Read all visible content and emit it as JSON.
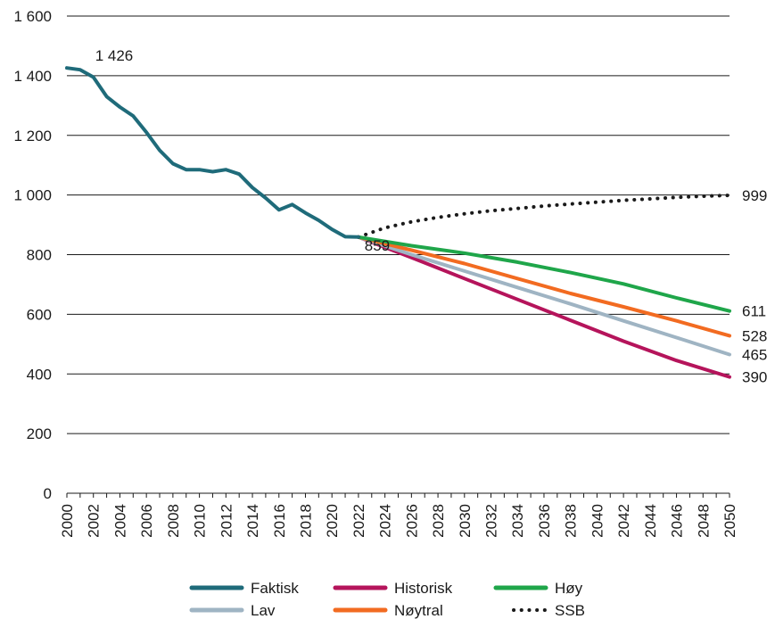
{
  "chart_data": {
    "type": "line",
    "title": "",
    "xlabel": "",
    "ylabel": "",
    "xlim": [
      2000,
      2050
    ],
    "ylim": [
      0,
      1600
    ],
    "yticks": [
      0,
      200,
      400,
      600,
      800,
      1000,
      1200,
      1400,
      1600
    ],
    "ytick_labels": [
      "0",
      "200",
      "400",
      "600",
      "800",
      "1 000",
      "1 200",
      "1 400",
      "1 600"
    ],
    "xticks": [
      2000,
      2002,
      2004,
      2006,
      2008,
      2010,
      2012,
      2014,
      2016,
      2018,
      2020,
      2022,
      2024,
      2026,
      2028,
      2030,
      2032,
      2034,
      2036,
      2038,
      2040,
      2042,
      2044,
      2046,
      2048,
      2050
    ],
    "grid": "horizontal",
    "legend_position": "bottom",
    "series": [
      {
        "name": "Faktisk",
        "color": "#1f6b7a",
        "style": "solid",
        "x": [
          2000,
          2001,
          2002,
          2003,
          2004,
          2005,
          2006,
          2007,
          2008,
          2009,
          2010,
          2011,
          2012,
          2013,
          2014,
          2015,
          2016,
          2017,
          2018,
          2019,
          2020,
          2021,
          2022
        ],
        "y": [
          1426,
          1420,
          1395,
          1330,
          1295,
          1265,
          1210,
          1150,
          1105,
          1085,
          1085,
          1078,
          1085,
          1070,
          1025,
          990,
          950,
          968,
          940,
          915,
          885,
          860,
          859
        ]
      },
      {
        "name": "Historisk",
        "color": "#b5145b",
        "style": "solid",
        "x": [
          2022,
          2026,
          2030,
          2034,
          2038,
          2042,
          2046,
          2050
        ],
        "y": [
          859,
          790,
          720,
          650,
          580,
          510,
          445,
          390
        ]
      },
      {
        "name": "Høy",
        "color": "#1fa64a",
        "style": "solid",
        "x": [
          2022,
          2026,
          2030,
          2034,
          2038,
          2042,
          2046,
          2050
        ],
        "y": [
          859,
          830,
          805,
          775,
          740,
          702,
          655,
          611
        ]
      },
      {
        "name": "Lav",
        "color": "#9fb4c3",
        "style": "solid",
        "x": [
          2022,
          2026,
          2030,
          2034,
          2038,
          2042,
          2046,
          2050
        ],
        "y": [
          859,
          800,
          745,
          690,
          635,
          578,
          522,
          465
        ]
      },
      {
        "name": "Nøytral",
        "color": "#f26b21",
        "style": "solid",
        "x": [
          2022,
          2026,
          2030,
          2034,
          2038,
          2042,
          2046,
          2050
        ],
        "y": [
          859,
          815,
          770,
          720,
          670,
          625,
          578,
          528
        ]
      },
      {
        "name": "SSB",
        "color": "#1a1a1a",
        "style": "dotted",
        "x": [
          2022,
          2024,
          2026,
          2028,
          2030,
          2032,
          2034,
          2036,
          2038,
          2040,
          2042,
          2044,
          2046,
          2048,
          2050
        ],
        "y": [
          859,
          890,
          910,
          925,
          937,
          947,
          955,
          963,
          970,
          976,
          982,
          987,
          992,
          996,
          999
        ]
      }
    ],
    "annotations": [
      {
        "text": "1 426",
        "x": 2002,
        "y": 1426,
        "placement": "start-label"
      },
      {
        "text": "859",
        "x": 2023,
        "y": 859,
        "placement": "junction-label"
      },
      {
        "text": "999",
        "x": 2050,
        "y": 999,
        "placement": "end-label"
      },
      {
        "text": "611",
        "x": 2050,
        "y": 611,
        "placement": "end-label"
      },
      {
        "text": "528",
        "x": 2050,
        "y": 528,
        "placement": "end-label"
      },
      {
        "text": "465",
        "x": 2050,
        "y": 465,
        "placement": "end-label"
      },
      {
        "text": "390",
        "x": 2050,
        "y": 390,
        "placement": "end-label"
      }
    ],
    "legend": {
      "rows": [
        [
          "Faktisk",
          "Historisk",
          "Høy"
        ],
        [
          "Lav",
          "Nøytral",
          "SSB"
        ]
      ]
    }
  }
}
